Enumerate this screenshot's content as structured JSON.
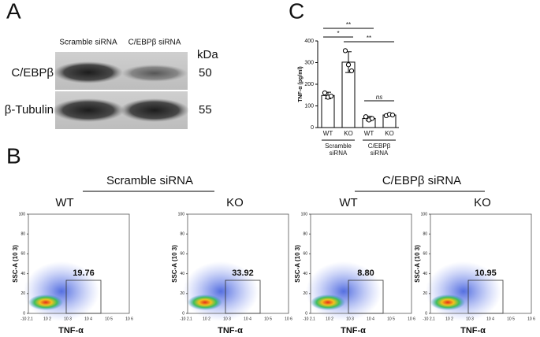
{
  "panel_labels": [
    "A",
    "B",
    "C"
  ],
  "blot": {
    "lanes": [
      "Scramble siRNA",
      "C/EBPβ siRNA"
    ],
    "kda_label": "kDa",
    "rows": [
      {
        "name": "C/EBPβ",
        "kda": "50"
      },
      {
        "name": "β-Tubulin",
        "kda": "55"
      }
    ]
  },
  "chart_data": {
    "type": "bar",
    "y_label": "TNF-α (pg/ml)",
    "categories": [
      "WT",
      "KO",
      "WT",
      "KO"
    ],
    "group_labels": [
      [
        "Scramble",
        "siRNA"
      ],
      [
        "C/EBPβ",
        "siRNA"
      ]
    ],
    "values": [
      148,
      302,
      42,
      58
    ],
    "errors": [
      15,
      48,
      10,
      5
    ],
    "points": [
      [
        160,
        140,
        145
      ],
      [
        355,
        290,
        262
      ],
      [
        50,
        35,
        42
      ],
      [
        55,
        61,
        58
      ]
    ],
    "ylim": [
      0,
      400
    ],
    "yticks": [
      0,
      100,
      200,
      300,
      400
    ],
    "comparisons": [
      {
        "from": 0,
        "to": 2,
        "label": "**"
      },
      {
        "from": 0,
        "to": 1,
        "label": "*"
      },
      {
        "from": 1,
        "to": 3,
        "label": "**"
      },
      {
        "from": 2,
        "to": 3,
        "label": "ns"
      }
    ]
  },
  "flow": {
    "groups": [
      "Scramble siRNA",
      "C/EBPβ siRNA"
    ],
    "y_label": "SSC-A (10 3)",
    "x_label": "TNF-α",
    "yticks": [
      0,
      20,
      40,
      60,
      80,
      100
    ],
    "ylim": [
      0,
      100
    ],
    "xtick_labels": [
      "-10 2.1",
      "10 2",
      "10 3",
      "10 4",
      "10 5",
      "10 6"
    ],
    "plots": [
      {
        "label": "WT",
        "gate": 19.76,
        "gate_label": "19.76"
      },
      {
        "label": "KO",
        "gate": 33.92,
        "gate_label": "33.92"
      },
      {
        "label": "WT",
        "gate": 8.8,
        "gate_label": "8.80"
      },
      {
        "label": "KO",
        "gate": 10.95,
        "gate_label": "10.95"
      }
    ]
  }
}
